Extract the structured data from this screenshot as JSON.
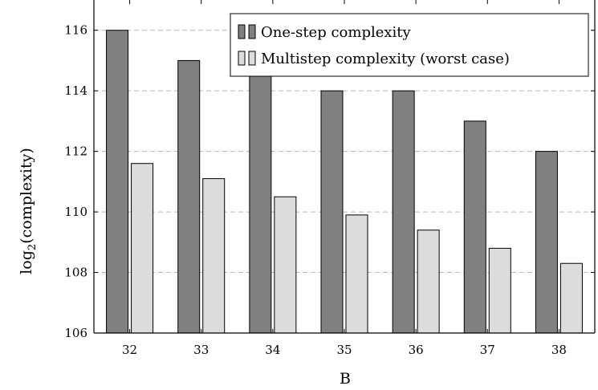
{
  "chart_data": {
    "type": "bar",
    "xlabel": "B",
    "ylabel": "log2(complexity)",
    "ylabel_base": "log",
    "ylabel_sub": "2",
    "ylabel_rest": "(complexity)",
    "categories": [
      "32",
      "33",
      "34",
      "35",
      "36",
      "37",
      "38"
    ],
    "ylim": [
      106,
      117
    ],
    "yticks": [
      "106",
      "108",
      "110",
      "112",
      "114",
      "116"
    ],
    "grid": "horizontal dashed",
    "legend_position": "top-right",
    "series": [
      {
        "name": "One-step complexity",
        "color": "#808080",
        "values": [
          116,
          115,
          115,
          114,
          114,
          113,
          112
        ]
      },
      {
        "name": "Multistep complexity (worst case)",
        "color": "#dcdcdc",
        "values": [
          111.6,
          111.1,
          110.5,
          109.9,
          109.4,
          108.8,
          108.3
        ]
      }
    ]
  }
}
